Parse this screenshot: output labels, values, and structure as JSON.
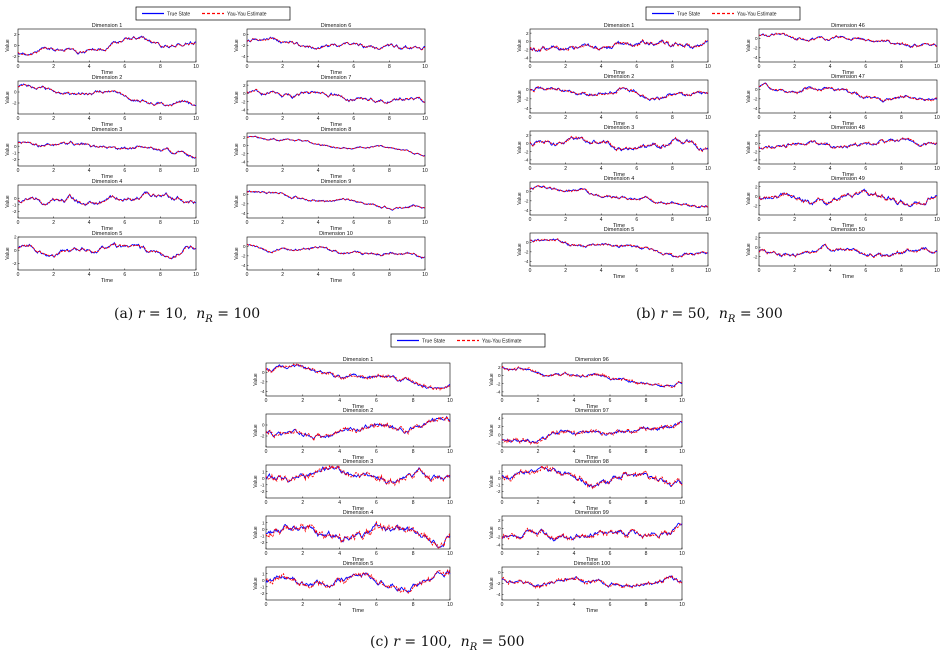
{
  "legend": {
    "true_label": "True State",
    "est_label": "Yau-Yau Estimate"
  },
  "colors": {
    "true": "#0000ff",
    "estimate": "#ff0000",
    "axis": "#000000",
    "text": "#111111"
  },
  "axis_text": {
    "xlabel": "Time",
    "ylabel": "Value"
  },
  "x_ticks": [
    0,
    2,
    4,
    6,
    8,
    10
  ],
  "figures": [
    {
      "id": "a",
      "caption": {
        "tag": "(a)",
        "r_value": "10",
        "n_value": "100"
      },
      "panels": [
        {
          "title": "Dimension 1",
          "ylim": [
            -3,
            3
          ],
          "yticks": [
            "2",
            "0",
            "-2"
          ],
          "start": -1.2,
          "ampl": 0.9,
          "drift": 2.2
        },
        {
          "title": "Dimension 6",
          "ylim": [
            -5,
            1
          ],
          "yticks": [
            "0",
            "-2",
            "-4"
          ],
          "start": -1.2,
          "ampl": 0.9,
          "drift": -1.5
        },
        {
          "title": "Dimension 2",
          "ylim": [
            -4,
            2
          ],
          "yticks": [
            "0",
            "-2"
          ],
          "start": 1.0,
          "ampl": 0.8,
          "drift": -3.5
        },
        {
          "title": "Dimension 7",
          "ylim": [
            -5,
            3
          ],
          "yticks": [
            "2",
            "0",
            "-2",
            "-4"
          ],
          "start": 0.5,
          "ampl": 1.2,
          "drift": -2.5
        },
        {
          "title": "Dimension 3",
          "ylim": [
            -3,
            2
          ],
          "yticks": [
            "0",
            "-1",
            "-2"
          ],
          "start": 0.6,
          "ampl": 0.7,
          "drift": -2.0
        },
        {
          "title": "Dimension 8",
          "ylim": [
            -5,
            3
          ],
          "yticks": [
            "2",
            "0",
            "-2",
            "-4"
          ],
          "start": 2.0,
          "ampl": 0.6,
          "drift": -4.0
        },
        {
          "title": "Dimension 4",
          "ylim": [
            -3,
            2
          ],
          "yticks": [
            "0",
            "-1",
            "-2"
          ],
          "start": -0.3,
          "ampl": 0.9,
          "drift": 0.5
        },
        {
          "title": "Dimension 9",
          "ylim": [
            -5,
            2
          ],
          "yticks": [
            "0",
            "-2",
            "-4"
          ],
          "start": 0.4,
          "ampl": 0.7,
          "drift": -3.5
        },
        {
          "title": "Dimension 5",
          "ylim": [
            -3,
            2
          ],
          "yticks": [
            "2",
            "0",
            "-2"
          ],
          "start": 0.2,
          "ampl": 0.9,
          "drift": -0.3
        },
        {
          "title": "Dimension 10",
          "ylim": [
            -5,
            2
          ],
          "yticks": [
            "0",
            "-2",
            "-4"
          ],
          "start": 0.4,
          "ampl": 0.8,
          "drift": -3.0
        }
      ]
    },
    {
      "id": "b",
      "caption": {
        "tag": "(b)",
        "r_value": "50",
        "n_value": "300"
      },
      "panels": [
        {
          "title": "Dimension 1",
          "ylim": [
            -5,
            3
          ],
          "yticks": [
            "2",
            "0",
            "-2",
            "-4"
          ],
          "start": -1.5,
          "ampl": 1.4,
          "drift": 1.5
        },
        {
          "title": "Dimension 46",
          "ylim": [
            -5,
            2
          ],
          "yticks": [
            "0",
            "-2",
            "-4"
          ],
          "start": 0.8,
          "ampl": 0.8,
          "drift": -2.5
        },
        {
          "title": "Dimension 2",
          "ylim": [
            -5,
            2
          ],
          "yticks": [
            "0",
            "-2",
            "-4"
          ],
          "start": 0.2,
          "ampl": 1.0,
          "drift": -2.0
        },
        {
          "title": "Dimension 47",
          "ylim": [
            -5,
            2
          ],
          "yticks": [
            "0",
            "-2",
            "-4"
          ],
          "start": 0.6,
          "ampl": 0.9,
          "drift": -3.5
        },
        {
          "title": "Dimension 3",
          "ylim": [
            -5,
            3
          ],
          "yticks": [
            "2",
            "0",
            "-2",
            "-4"
          ],
          "start": 0.3,
          "ampl": 1.4,
          "drift": -1.0
        },
        {
          "title": "Dimension 48",
          "ylim": [
            -5,
            3
          ],
          "yticks": [
            "2",
            "0",
            "-2",
            "-4"
          ],
          "start": -0.8,
          "ampl": 1.1,
          "drift": 1.5
        },
        {
          "title": "Dimension 4",
          "ylim": [
            -5,
            2
          ],
          "yticks": [
            "0",
            "-2",
            "-4"
          ],
          "start": 0.5,
          "ampl": 0.8,
          "drift": -3.5
        },
        {
          "title": "Dimension 49",
          "ylim": [
            -4,
            3
          ],
          "yticks": [
            "2",
            "0",
            "-2"
          ],
          "start": -0.5,
          "ampl": 1.4,
          "drift": 0.0
        },
        {
          "title": "Dimension 5",
          "ylim": [
            -5,
            2
          ],
          "yticks": [
            "0",
            "-2",
            "-4"
          ],
          "start": 0.5,
          "ampl": 0.8,
          "drift": -3.5
        },
        {
          "title": "Dimension 50",
          "ylim": [
            -4,
            3
          ],
          "yticks": [
            "2",
            "0",
            "-2"
          ],
          "start": -1.0,
          "ampl": 1.0,
          "drift": 0.0
        }
      ]
    },
    {
      "id": "c",
      "caption": {
        "tag": "(c)",
        "r_value": "100",
        "n_value": "500"
      },
      "panels": [
        {
          "title": "Dimension 1",
          "ylim": [
            -5,
            2
          ],
          "yticks": [
            "0",
            "-2",
            "-4"
          ],
          "start": 0.6,
          "ampl": 1.0,
          "drift": -3.0
        },
        {
          "title": "Dimension 96",
          "ylim": [
            -5,
            3
          ],
          "yticks": [
            "2",
            "0",
            "-2",
            "-4"
          ],
          "start": 1.5,
          "ampl": 0.9,
          "drift": -4.0
        },
        {
          "title": "Dimension 2",
          "ylim": [
            -4,
            2
          ],
          "yticks": [
            "0",
            "-2"
          ],
          "start": -1.8,
          "ampl": 1.1,
          "drift": 2.5
        },
        {
          "title": "Dimension 97",
          "ylim": [
            -3,
            5
          ],
          "yticks": [
            "4",
            "2",
            "0",
            "-2"
          ],
          "start": -1.0,
          "ampl": 1.3,
          "drift": 3.0
        },
        {
          "title": "Dimension 3",
          "ylim": [
            -3,
            2
          ],
          "yticks": [
            "1",
            "0",
            "-1",
            "-2"
          ],
          "start": 0.5,
          "ampl": 1.1,
          "drift": -0.5
        },
        {
          "title": "Dimension 98",
          "ylim": [
            -3,
            2
          ],
          "yticks": [
            "1",
            "0",
            "-1",
            "-2"
          ],
          "start": 0.5,
          "ampl": 1.0,
          "drift": -1.0
        },
        {
          "title": "Dimension 4",
          "ylim": [
            -3,
            2
          ],
          "yticks": [
            "1",
            "0",
            "-1",
            "-2"
          ],
          "start": -0.4,
          "ampl": 1.3,
          "drift": -0.5
        },
        {
          "title": "Dimension 99",
          "ylim": [
            -5,
            3
          ],
          "yticks": [
            "2",
            "0",
            "-2",
            "-4"
          ],
          "start": -2.0,
          "ampl": 1.5,
          "drift": 2.0
        },
        {
          "title": "Dimension 5",
          "ylim": [
            -3,
            2
          ],
          "yticks": [
            "1",
            "0",
            "-1",
            "-2"
          ],
          "start": -0.3,
          "ampl": 1.1,
          "drift": 0.5
        },
        {
          "title": "Dimension 100",
          "ylim": [
            -5,
            1
          ],
          "yticks": [
            "0",
            "-2",
            "-4"
          ],
          "start": -1.2,
          "ampl": 0.9,
          "drift": -1.0
        }
      ]
    }
  ],
  "chart_data": [
    {
      "type": "line",
      "figure": "a",
      "x_range": [
        0,
        10
      ],
      "series": [
        {
          "name": "True State"
        },
        {
          "name": "Yau-Yau Estimate"
        }
      ]
    },
    {
      "type": "line",
      "figure": "b",
      "x_range": [
        0,
        10
      ],
      "series": [
        {
          "name": "True State"
        },
        {
          "name": "Yau-Yau Estimate"
        }
      ]
    },
    {
      "type": "line",
      "figure": "c",
      "x_range": [
        0,
        10
      ],
      "series": [
        {
          "name": "True State"
        },
        {
          "name": "Yau-Yau Estimate"
        }
      ]
    }
  ]
}
